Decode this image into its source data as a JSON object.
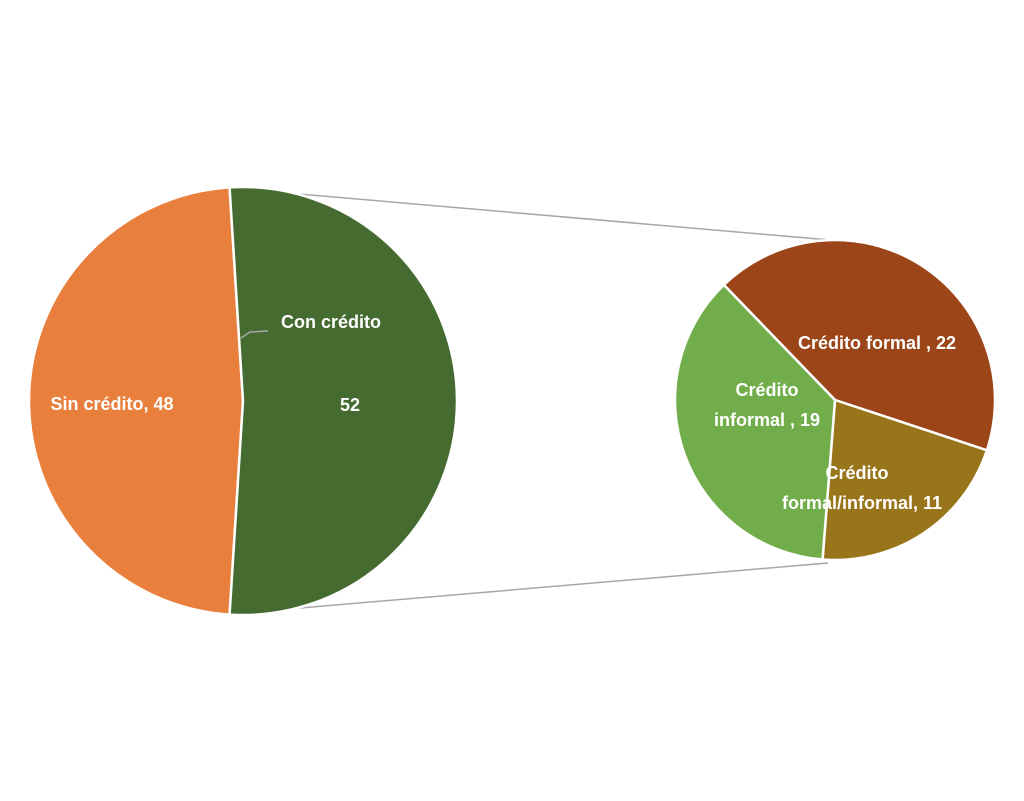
{
  "chart_data": [
    {
      "type": "pie",
      "categories": [
        "Sin crédito,",
        "Con crédito"
      ],
      "values": [
        48,
        52
      ],
      "colors": [
        "#e97f3d",
        "#466b30"
      ]
    },
    {
      "type": "pie",
      "categories": [
        "Crédito formal ,",
        "Crédito formal/informal,",
        "Crédito informal ,"
      ],
      "values": [
        22,
        11,
        19
      ],
      "colors": [
        "#9b4519",
        "#98741a",
        "#72ad4c"
      ]
    }
  ]
}
